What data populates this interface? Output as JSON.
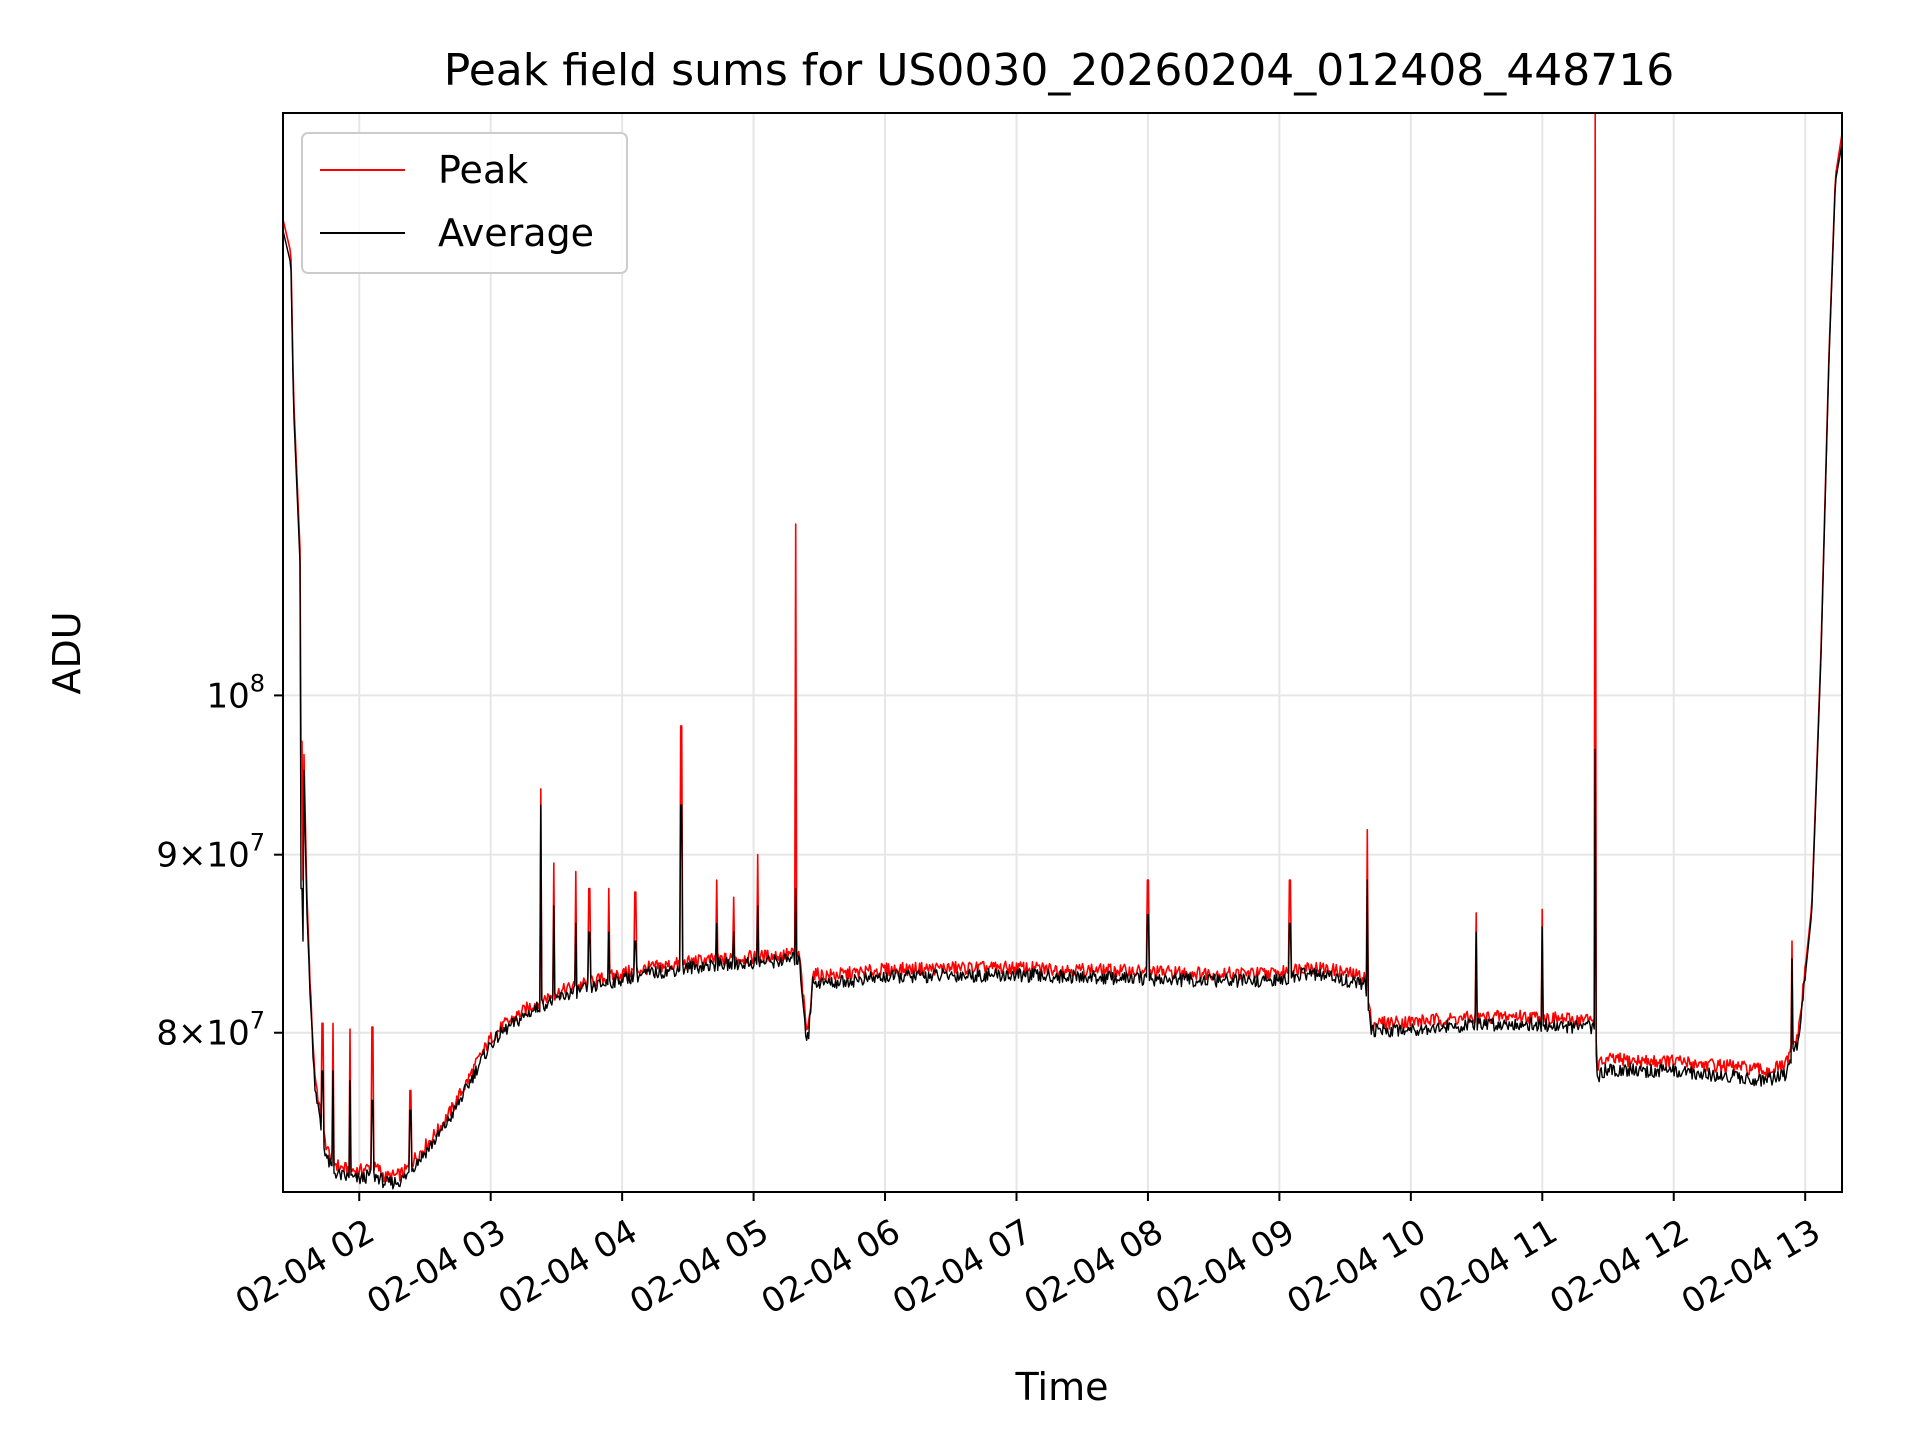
{
  "chart_data": {
    "type": "line",
    "title": "Peak field sums for US0030_20260204_012408_448716",
    "xlabel": "Time",
    "ylabel": "ADU",
    "x_unit": "hours on 02-04",
    "xlim": [
      1.42,
      13.28
    ],
    "ylim": [
      72000000,
      147000000
    ],
    "y_scale": "log",
    "grid": true,
    "legend_position": "top-left",
    "x_ticks": [
      {
        "value": 2,
        "label": "02-04 02"
      },
      {
        "value": 3,
        "label": "02-04 03"
      },
      {
        "value": 4,
        "label": "02-04 04"
      },
      {
        "value": 5,
        "label": "02-04 05"
      },
      {
        "value": 6,
        "label": "02-04 06"
      },
      {
        "value": 7,
        "label": "02-04 07"
      },
      {
        "value": 8,
        "label": "02-04 08"
      },
      {
        "value": 9,
        "label": "02-04 09"
      },
      {
        "value": 10,
        "label": "02-04 10"
      },
      {
        "value": 11,
        "label": "02-04 11"
      },
      {
        "value": 12,
        "label": "02-04 12"
      },
      {
        "value": 13,
        "label": "02-04 13"
      }
    ],
    "y_ticks": [
      {
        "value": 80000000,
        "mantissa": "8",
        "base": "10",
        "exp": "7"
      },
      {
        "value": 90000000,
        "mantissa": "9",
        "base": "10",
        "exp": "7"
      },
      {
        "value": 100000000,
        "mantissa": "",
        "base": "10",
        "exp": "8"
      }
    ],
    "series": [
      {
        "name": "Peak",
        "color": "#ff0000",
        "x": [
          1.42,
          1.48,
          1.5,
          1.55,
          1.58,
          1.6,
          1.63,
          1.66,
          1.72,
          1.76,
          1.8,
          1.85,
          1.9,
          2.0,
          2.08,
          2.15,
          2.2,
          2.3,
          2.35,
          2.39,
          2.42,
          2.5,
          2.6,
          2.7,
          2.8,
          2.9,
          3.0,
          3.1,
          3.2,
          3.3,
          3.4,
          3.5,
          3.6,
          3.7,
          3.8,
          3.9,
          4.0,
          4.2,
          4.4,
          4.6,
          4.8,
          5.0,
          5.2,
          5.3,
          5.35,
          5.4,
          5.42,
          5.45,
          5.5,
          5.6,
          6.0,
          6.5,
          7.0,
          7.5,
          8.0,
          8.5,
          9.0,
          9.2,
          9.4,
          9.65,
          9.7,
          10.0,
          10.5,
          10.8,
          11.0,
          11.2,
          11.4,
          11.42,
          11.5,
          11.8,
          12.0,
          12.3,
          12.5,
          12.7,
          12.85,
          12.95,
          13.05,
          13.12,
          13.18,
          13.23,
          13.28
        ],
        "y": [
          137000000,
          134000000,
          122000000,
          110000000,
          96000000,
          88000000,
          82000000,
          78000000,
          75000000,
          74000000,
          73500000,
          73200000,
          73100000,
          73000000,
          73200000,
          73100000,
          72700000,
          72800000,
          73000000,
          73300000,
          73600000,
          74200000,
          75000000,
          76000000,
          77200000,
          78500000,
          79700000,
          80400000,
          80900000,
          81400000,
          81800000,
          82100000,
          82400000,
          82600000,
          82800000,
          83000000,
          83200000,
          83500000,
          83700000,
          83900000,
          84000000,
          84100000,
          84200000,
          84300000,
          84100000,
          80200000,
          80400000,
          83200000,
          83100000,
          83100000,
          83400000,
          83500000,
          83500000,
          83400000,
          83300000,
          83200000,
          83200000,
          83600000,
          83400000,
          83000000,
          80500000,
          80600000,
          80800000,
          80900000,
          80800000,
          80700000,
          80700000,
          78300000,
          78600000,
          78500000,
          78500000,
          78300000,
          78200000,
          78000000,
          78300000,
          80000000,
          87000000,
          103000000,
          125000000,
          141000000,
          145000000
        ]
      },
      {
        "name": "Average",
        "color": "#000000",
        "x": [
          1.42,
          1.48,
          1.5,
          1.55,
          1.58,
          1.6,
          1.63,
          1.66,
          1.72,
          1.76,
          1.8,
          1.85,
          1.9,
          2.0,
          2.08,
          2.15,
          2.2,
          2.3,
          2.35,
          2.39,
          2.42,
          2.5,
          2.6,
          2.7,
          2.8,
          2.9,
          3.0,
          3.1,
          3.2,
          3.3,
          3.4,
          3.5,
          3.6,
          3.7,
          3.8,
          3.9,
          4.0,
          4.2,
          4.4,
          4.6,
          4.8,
          5.0,
          5.2,
          5.3,
          5.35,
          5.4,
          5.42,
          5.45,
          5.5,
          5.6,
          6.0,
          6.5,
          7.0,
          7.5,
          8.0,
          8.5,
          9.0,
          9.2,
          9.4,
          9.65,
          9.7,
          10.0,
          10.5,
          10.8,
          11.0,
          11.2,
          11.4,
          11.42,
          11.5,
          11.8,
          12.0,
          12.3,
          12.5,
          12.7,
          12.85,
          12.95,
          13.05,
          13.12,
          13.18,
          13.23,
          13.28
        ],
        "y": [
          136000000,
          133000000,
          121000000,
          109000000,
          95000000,
          87000000,
          81500000,
          77500000,
          74500000,
          73500000,
          73000000,
          72800000,
          72700000,
          72600000,
          72800000,
          72700000,
          72400000,
          72500000,
          72700000,
          73000000,
          73300000,
          73900000,
          74700000,
          75700000,
          76900000,
          78200000,
          79400000,
          80100000,
          80600000,
          81100000,
          81500000,
          81800000,
          82100000,
          82300000,
          82500000,
          82700000,
          82900000,
          83200000,
          83400000,
          83600000,
          83700000,
          83800000,
          83900000,
          84000000,
          83800000,
          79800000,
          80000000,
          82800000,
          82700000,
          82700000,
          83000000,
          83100000,
          83100000,
          83000000,
          82900000,
          82800000,
          82800000,
          83200000,
          83000000,
          82600000,
          80100000,
          80200000,
          80400000,
          80500000,
          80400000,
          80300000,
          80300000,
          77700000,
          78100000,
          78000000,
          78000000,
          77800000,
          77700000,
          77500000,
          77800000,
          79600000,
          86600000,
          102500000,
          124500000,
          140500000,
          144000000
        ]
      }
    ],
    "spikes": [
      {
        "x": 1.56,
        "peak": 97000000,
        "avg": 88000000
      },
      {
        "x": 1.57,
        "peak": 88500000,
        "avg": 85000000
      },
      {
        "x": 1.72,
        "peak": 80500000,
        "avg": 78000000
      },
      {
        "x": 1.8,
        "peak": 80500000,
        "avg": 78000000
      },
      {
        "x": 1.93,
        "peak": 80200000,
        "avg": 77500000
      },
      {
        "x": 2.1,
        "peak": 80300000,
        "avg": 76500000
      },
      {
        "x": 2.39,
        "peak": 77000000,
        "avg": 76000000
      },
      {
        "x": 3.38,
        "peak": 94000000,
        "avg": 93000000
      },
      {
        "x": 3.48,
        "peak": 89500000,
        "avg": 87000000
      },
      {
        "x": 3.65,
        "peak": 89000000,
        "avg": 86000000
      },
      {
        "x": 3.75,
        "peak": 88000000,
        "avg": 85500000
      },
      {
        "x": 3.9,
        "peak": 88000000,
        "avg": 85500000
      },
      {
        "x": 4.1,
        "peak": 87800000,
        "avg": 85000000
      },
      {
        "x": 4.45,
        "peak": 98000000,
        "avg": 93000000
      },
      {
        "x": 4.72,
        "peak": 88500000,
        "avg": 86000000
      },
      {
        "x": 4.85,
        "peak": 87500000,
        "avg": 85500000
      },
      {
        "x": 5.03,
        "peak": 90000000,
        "avg": 87000000
      },
      {
        "x": 5.32,
        "peak": 112000000,
        "avg": 88000000
      },
      {
        "x": 8.0,
        "peak": 88500000,
        "avg": 86500000
      },
      {
        "x": 9.08,
        "peak": 88500000,
        "avg": 86000000
      },
      {
        "x": 9.67,
        "peak": 91500000,
        "avg": 88500000
      },
      {
        "x": 10.5,
        "peak": 86600000,
        "avg": 85500000
      },
      {
        "x": 11.0,
        "peak": 86800000,
        "avg": 85800000
      },
      {
        "x": 11.4,
        "peak": 147000000,
        "avg": 96500000
      },
      {
        "x": 12.9,
        "peak": 85000000,
        "avg": 84000000
      }
    ]
  }
}
